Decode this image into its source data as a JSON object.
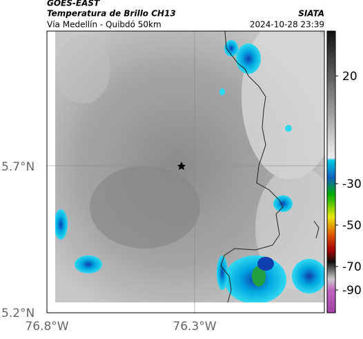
{
  "header": {
    "title": "GOES-EAST",
    "subtitle": "Temperatura de Brillo CH13",
    "location": "Vía Medellín - Quibdó 50km",
    "source": "SIATA",
    "datetime": "2024-10-28 23:39"
  },
  "axes": {
    "lat_labels": [
      "5.7°N",
      "5.2°N"
    ],
    "lon_labels": [
      "76.8°W",
      "76.3°W"
    ]
  },
  "colorbar": {
    "labels": [
      "20",
      "-30",
      "-50",
      "-70",
      "-90"
    ]
  }
}
